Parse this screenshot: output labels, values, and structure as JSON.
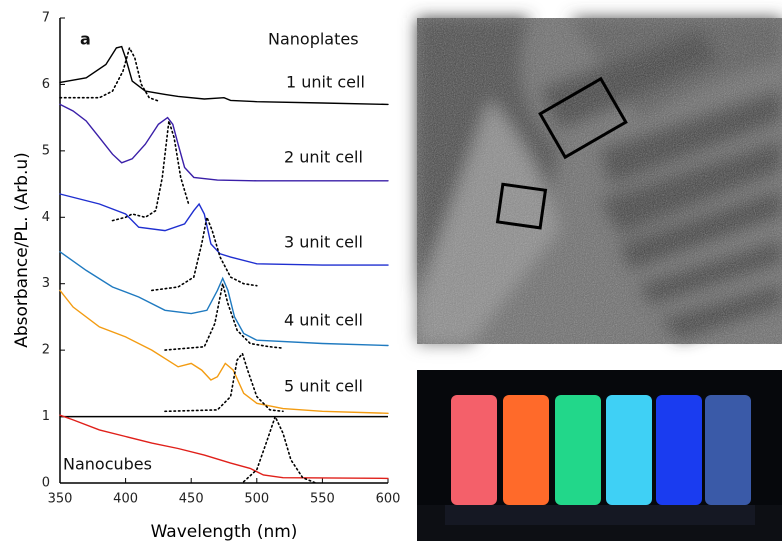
{
  "chart_data": {
    "type": "line",
    "xlabel": "Wavelength (nm)",
    "ylabel": "Absorbance/PL. (Arb.u)",
    "xlim": [
      350,
      600
    ],
    "xticks": [
      350,
      400,
      450,
      500,
      550,
      600
    ],
    "ylim": [
      0,
      7
    ],
    "yticks": [
      0,
      1,
      2,
      3,
      4,
      5,
      6,
      7
    ],
    "annotations": [
      "a",
      "Nanoplates",
      "1 unit cell",
      "2 unit cell",
      "3 unit cell",
      "4 unit cell",
      "5 unit cell",
      "Nanocubes"
    ],
    "series": [
      {
        "color": "#000000",
        "dash": "solid",
        "x": [
          350,
          370,
          385,
          393,
          397,
          400,
          405,
          415,
          430,
          440,
          460,
          475,
          480,
          500,
          550,
          600
        ],
        "values": [
          6.03,
          6.1,
          6.3,
          6.55,
          6.57,
          6.4,
          6.05,
          5.9,
          5.85,
          5.82,
          5.78,
          5.8,
          5.76,
          5.74,
          5.72,
          5.7
        ]
      },
      {
        "color": "#000000",
        "dash": "dotted",
        "x": [
          350,
          380,
          390,
          398,
          403,
          407,
          412,
          418,
          425
        ],
        "values": [
          5.8,
          5.8,
          5.9,
          6.2,
          6.55,
          6.4,
          6.0,
          5.8,
          5.75
        ]
      },
      {
        "color": "#3a1fa8",
        "dash": "solid",
        "x": [
          350,
          360,
          370,
          380,
          390,
          397,
          405,
          415,
          425,
          432,
          436,
          440,
          445,
          452,
          470,
          500,
          600
        ],
        "values": [
          5.7,
          5.6,
          5.45,
          5.2,
          4.95,
          4.82,
          4.88,
          5.1,
          5.4,
          5.5,
          5.4,
          5.1,
          4.75,
          4.6,
          4.56,
          4.55,
          4.55
        ]
      },
      {
        "color": "#000000",
        "dash": "dotted",
        "x": [
          390,
          400,
          405,
          415,
          423,
          428,
          433,
          437,
          442,
          448
        ],
        "values": [
          3.95,
          4.0,
          4.05,
          4.0,
          4.1,
          4.6,
          5.45,
          5.2,
          4.6,
          4.2
        ]
      },
      {
        "color": "#1f2fd0",
        "dash": "solid",
        "x": [
          350,
          380,
          400,
          410,
          430,
          445,
          452,
          456,
          460,
          465,
          472,
          480,
          500,
          550,
          600
        ],
        "values": [
          4.35,
          4.2,
          4.05,
          3.85,
          3.8,
          3.9,
          4.1,
          4.2,
          4.05,
          3.6,
          3.45,
          3.4,
          3.3,
          3.28,
          3.28
        ]
      },
      {
        "color": "#000000",
        "dash": "dotted",
        "x": [
          420,
          440,
          452,
          458,
          462,
          466,
          472,
          480,
          490,
          500
        ],
        "values": [
          2.9,
          2.95,
          3.1,
          3.6,
          4.0,
          3.8,
          3.4,
          3.1,
          3.0,
          2.97
        ]
      },
      {
        "color": "#1f7ac0",
        "dash": "solid",
        "x": [
          350,
          370,
          390,
          410,
          430,
          450,
          462,
          470,
          474,
          478,
          483,
          490,
          500,
          550,
          600
        ],
        "values": [
          3.48,
          3.2,
          2.95,
          2.8,
          2.6,
          2.55,
          2.6,
          2.9,
          3.08,
          2.9,
          2.5,
          2.25,
          2.15,
          2.1,
          2.07
        ]
      },
      {
        "color": "#000000",
        "dash": "dotted",
        "x": [
          430,
          460,
          468,
          474,
          478,
          485,
          495,
          510,
          520
        ],
        "values": [
          2.0,
          2.05,
          2.4,
          3.0,
          2.7,
          2.3,
          2.1,
          2.05,
          2.03
        ]
      },
      {
        "color": "#f39c12",
        "dash": "solid",
        "x": [
          350,
          360,
          380,
          400,
          420,
          440,
          450,
          458,
          465,
          470,
          476,
          482,
          490,
          500,
          520,
          550,
          600
        ],
        "values": [
          2.9,
          2.65,
          2.35,
          2.2,
          2.0,
          1.75,
          1.8,
          1.7,
          1.55,
          1.6,
          1.8,
          1.7,
          1.35,
          1.2,
          1.12,
          1.08,
          1.05
        ]
      },
      {
        "color": "#000000",
        "dash": "dotted",
        "x": [
          430,
          470,
          480,
          485,
          489,
          493,
          500,
          510,
          520
        ],
        "values": [
          1.08,
          1.1,
          1.3,
          1.85,
          1.95,
          1.7,
          1.3,
          1.1,
          1.08
        ]
      },
      {
        "color": "#e0201a",
        "dash": "solid",
        "x": [
          350,
          360,
          380,
          400,
          420,
          440,
          460,
          480,
          495,
          505,
          520,
          600
        ],
        "values": [
          1.02,
          0.95,
          0.8,
          0.7,
          0.6,
          0.52,
          0.42,
          0.3,
          0.22,
          0.12,
          0.08,
          0.07
        ]
      },
      {
        "color": "#000000",
        "dash": "dotted",
        "x": [
          490,
          500,
          508,
          514,
          520,
          526,
          535,
          545
        ],
        "values": [
          0.02,
          0.2,
          0.65,
          1.0,
          0.75,
          0.35,
          0.08,
          0.0
        ]
      }
    ]
  }
}
